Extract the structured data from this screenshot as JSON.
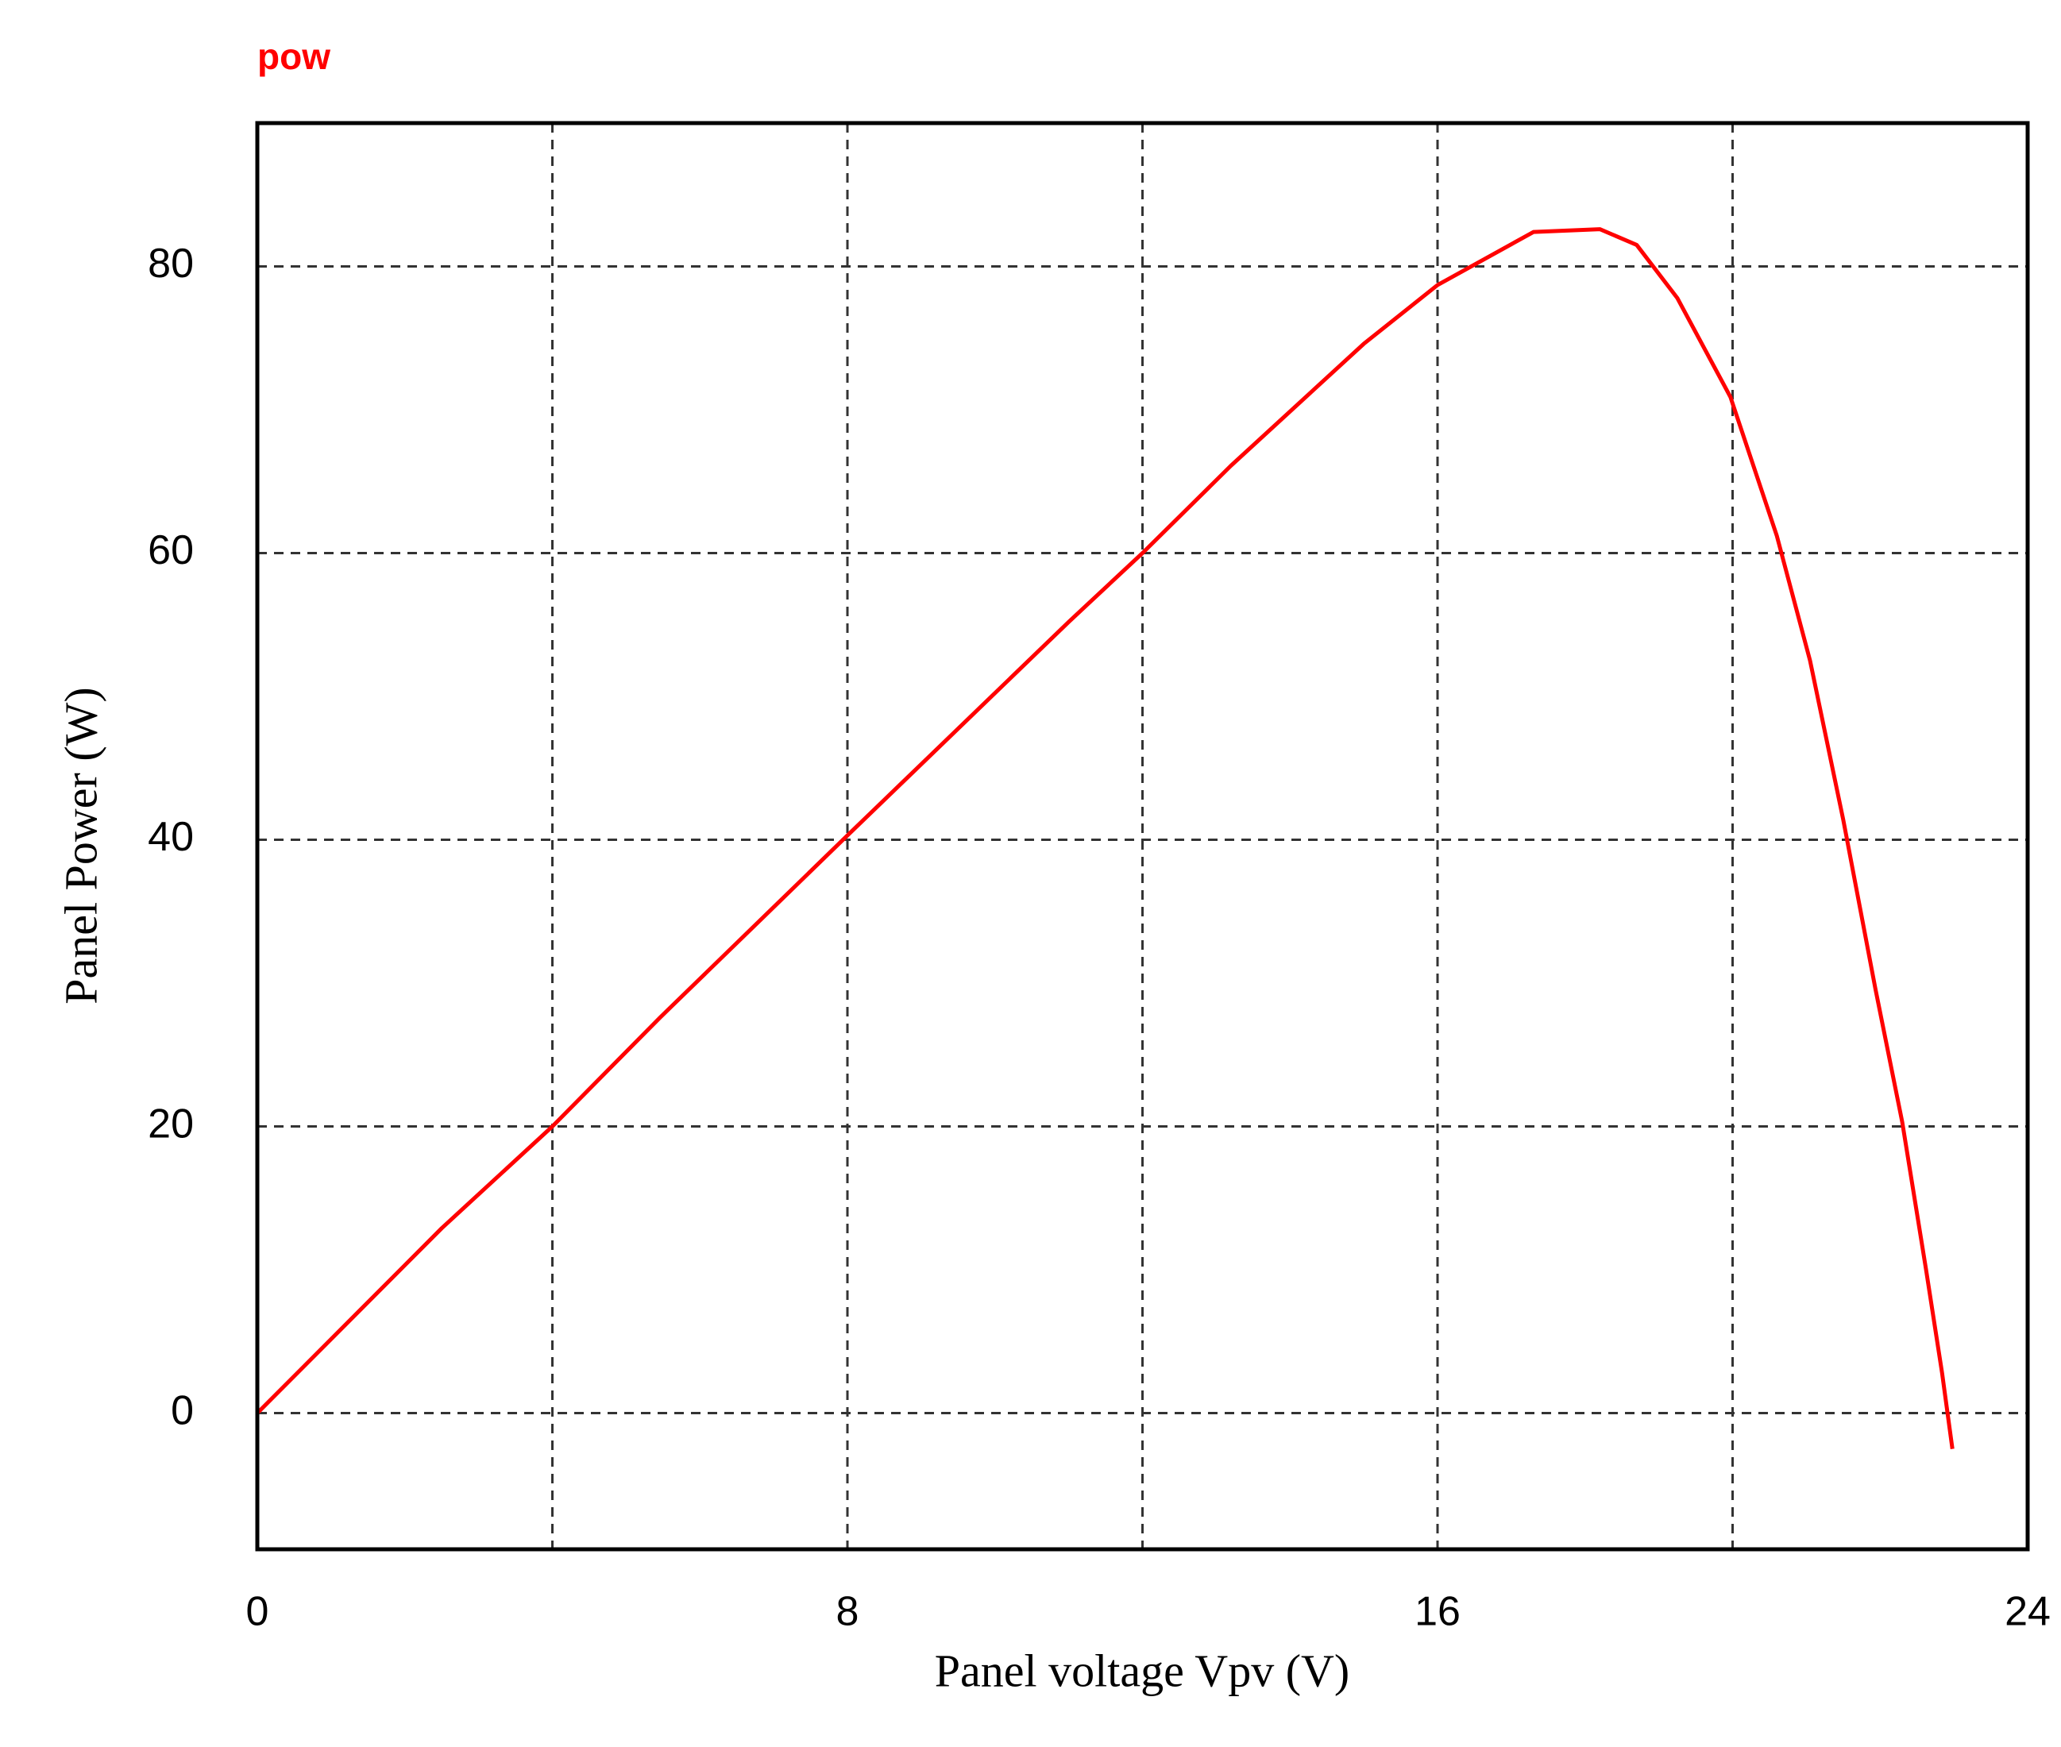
{
  "chart_data": {
    "type": "line",
    "xlabel": "Panel voltage Vpv (V)",
    "ylabel": "Panel Power (W)",
    "x": [
      0,
      2.5,
      4,
      5.46,
      8,
      11,
      12,
      13.2,
      15,
      16,
      17.3,
      18.2,
      18.7,
      19.25,
      19.97,
      20.6,
      21.05,
      21.5,
      21.94,
      22.3,
      22.62,
      22.84,
      22.98
    ],
    "series": [
      {
        "name": "pow",
        "color": "#ff0000",
        "values": [
          0,
          12.9,
          20,
          27.6,
          40.3,
          55.2,
          60,
          66.1,
          74.6,
          78.7,
          82.4,
          82.6,
          81.5,
          77.8,
          70.9,
          61.2,
          52.5,
          41.4,
          29.5,
          20.3,
          10.1,
          2.8,
          -2.5
        ]
      }
    ],
    "xlim": [
      0,
      24
    ],
    "ylim": [
      -9.5,
      90
    ],
    "xticks": [
      0,
      8,
      16,
      24
    ],
    "yticks": [
      0,
      20,
      40,
      60,
      80
    ],
    "xgrid": [
      4,
      8,
      12,
      16,
      20
    ],
    "grid": true
  }
}
